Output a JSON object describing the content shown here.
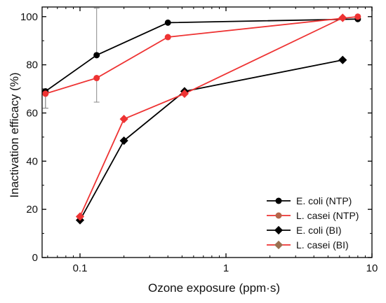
{
  "chart_data": {
    "type": "scatter",
    "xlabel": "Ozone exposure (ppm·s)",
    "ylabel": "Inactivation efficacy (%)",
    "xscale": "log",
    "xlim": [
      0.055,
      10
    ],
    "ylim": [
      0,
      104
    ],
    "xticks": [
      0.1,
      1,
      10
    ],
    "xtick_labels": [
      "0.1",
      "1",
      "10"
    ],
    "yticks": [
      0,
      20,
      40,
      60,
      80,
      100
    ],
    "ytick_labels": [
      "0",
      "20",
      "40",
      "60",
      "80",
      "100"
    ],
    "grid": false,
    "legend_position": "bottom-right",
    "series": [
      {
        "name": "E. coli (NTP)",
        "color": "#000000",
        "marker": "circle",
        "x": [
          0.058,
          0.13,
          0.4,
          8.0
        ],
        "y": [
          69,
          84,
          97.5,
          99
        ],
        "yerr_low": [
          7,
          0,
          0,
          0
        ],
        "yerr_high": [
          0,
          19.5,
          0,
          0
        ]
      },
      {
        "name": "L. casei (NTP)",
        "color": "#ee3333",
        "marker": "circle",
        "x": [
          0.058,
          0.13,
          0.4,
          8.0
        ],
        "y": [
          68,
          74.5,
          91.5,
          100
        ],
        "yerr_low": [
          6,
          10,
          0,
          0
        ],
        "yerr_high": [
          0,
          0,
          0,
          0
        ]
      },
      {
        "name": "E. coli (BI)",
        "color": "#000000",
        "marker": "diamond",
        "x": [
          0.1,
          0.2,
          0.52,
          6.3
        ],
        "y": [
          15.5,
          48.5,
          69,
          82
        ]
      },
      {
        "name": "L. casei (BI)",
        "color": "#ee3333",
        "marker": "diamond",
        "x": [
          0.1,
          0.2,
          0.52,
          6.3
        ],
        "y": [
          17,
          57.5,
          68,
          99.5
        ]
      }
    ],
    "legend": [
      {
        "label": "E. coli (NTP)",
        "line_color": "#000000",
        "marker_color": "#000000",
        "marker": "circle"
      },
      {
        "label": "L. casei (NTP)",
        "line_color": "#ee3333",
        "marker_color": "#b5654a",
        "marker": "circle"
      },
      {
        "label": "E. coli (BI)",
        "line_color": "#000000",
        "marker_color": "#000000",
        "marker": "diamond"
      },
      {
        "label": "L. casei (BI)",
        "line_color": "#ee3333",
        "marker_color": "#9a7050",
        "marker": "diamond"
      }
    ],
    "errorbar_color": "#888888"
  }
}
